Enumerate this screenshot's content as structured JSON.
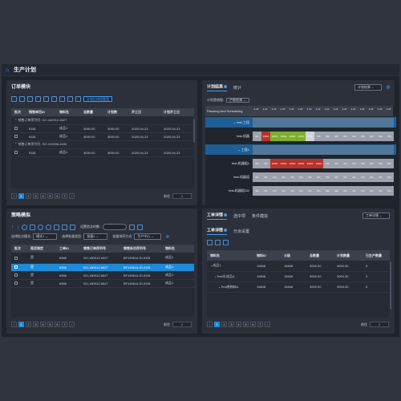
{
  "app": {
    "title": "生产计划"
  },
  "orders": {
    "title": "订单模块",
    "toolbar_tag": "计划后排班管理",
    "columns": [
      "批次",
      "销售单目ID",
      "物料名",
      "总数量",
      "计划数",
      "开工日",
      "计划开工日"
    ],
    "groups": [
      {
        "label": "销售订单序列号: SO-180912-8427",
        "rows": [
          [
            "",
            "9181",
            "成品1",
            "3000.00",
            "3000.00",
            "2020-04-23",
            "2020-04-23"
          ],
          [
            "",
            "9181",
            "成品1",
            "3000.00",
            "3000.00",
            "2020-04-23",
            "2020-04-23"
          ]
        ]
      },
      {
        "label": "销售订单序列号: SO-190506-8435",
        "rows": [
          [
            "",
            "9181",
            "成品1",
            "3000.00",
            "3000.00",
            "2020-04-23",
            "2020-04-23"
          ]
        ]
      }
    ],
    "pager": {
      "pages": [
        "1",
        "2",
        "3",
        "4",
        "5",
        "6",
        "7"
      ],
      "goto_label": "前往",
      "goto_value": "1"
    }
  },
  "strategy": {
    "title": "策略模拟",
    "setting_label": "设置首次时数:",
    "filter1_label": "选择批次模式:",
    "filter1_value": "模式1",
    "filter2_label": "选择批量类型:",
    "filter2_value": "批量1",
    "filter3_label": "批量排序方式:",
    "filter3_value": "生产中心",
    "columns": [
      "批次",
      "是否锁定",
      "工单ID",
      "销售订单序列号",
      "销售条目序列号",
      "物料名"
    ],
    "rows": [
      [
        "",
        "是",
        "8366",
        "SO-180912-8427",
        "BF190614-SI-9181",
        "成品1"
      ],
      [
        "",
        "是",
        "8366",
        "SO-180912-8427",
        "BF190614-SI-9181",
        "成品1"
      ],
      [
        "",
        "是",
        "8366",
        "SO-180912-8427",
        "BF190614-SI-9181",
        "成品1"
      ],
      [
        "",
        "是",
        "8366",
        "SO-180912-8427",
        "BF190614-SI-9181",
        "成品1"
      ]
    ],
    "selected_row": 1,
    "pager": {
      "pages": [
        "1",
        "2",
        "3",
        "4",
        "5",
        "6",
        "7"
      ],
      "goto_label": "前往",
      "goto_value": "1"
    }
  },
  "plan": {
    "tab1": "计划结果",
    "tab2": "统计",
    "result_select": "计划结果",
    "legend_label": "计划营销图:",
    "legend_value": "产能结果",
    "header_label": "Planning And Scheduling",
    "dates": [
      "4.22",
      "4.22",
      "4.22",
      "4.22",
      "4.22",
      "4.22",
      "4.22",
      "4.22",
      "4.22",
      "4.22",
      "4.22",
      "4.22",
      "4.22",
      "4.22",
      "4.22",
      "4.22"
    ],
    "rows": [
      {
        "name": "test-工段",
        "cells": [
          "",
          "",
          "",
          "",
          "",
          "",
          "",
          "",
          "",
          "",
          "",
          "",
          "",
          "",
          "",
          ""
        ]
      },
      {
        "name": "test-机器",
        "cells": [
          "0%",
          "100%",
          "100%",
          "100%",
          "100%",
          "100%",
          "17%",
          "0%",
          "0%",
          "0%",
          "0%",
          "0%",
          "0%",
          "0%",
          "0%",
          "0%"
        ]
      },
      {
        "name": "工段1",
        "cells": [
          "",
          "",
          "",
          "",
          "",
          "",
          "",
          "",
          "",
          "",
          "",
          "",
          "",
          "",
          "",
          ""
        ]
      },
      {
        "name": "test-机器组1",
        "cells": [
          "0%",
          "0%",
          "100%",
          "100%",
          "100%",
          "100%",
          "100%",
          "100%",
          "0%",
          "0%",
          "0%",
          "0%",
          "0%",
          "0%",
          "0%",
          "0%"
        ]
      },
      {
        "name": "test-机器组",
        "cells": [
          "0%",
          "0%",
          "0%",
          "0%",
          "0%",
          "0%",
          "0%",
          "0%",
          "0%",
          "0%",
          "0%",
          "0%",
          "0%",
          "0%",
          "0%",
          "0%"
        ]
      },
      {
        "name": "test-机器组111",
        "cells": [
          "0%",
          "0%",
          "0%",
          "0%",
          "0%",
          "0%",
          "0%",
          "0%",
          "0%",
          "0%",
          "0%",
          "0%",
          "0%",
          "0%",
          "0%",
          "0%"
        ]
      }
    ]
  },
  "workorder": {
    "tab1": "工单详情",
    "tab2": "选中项",
    "tab3": "条件模拟",
    "select_value": "工单详情",
    "subtab1": "工单详情",
    "subtab2": "分派设置",
    "columns": [
      "物料名",
      "物料ID",
      "父级",
      "总数量",
      "计划数量",
      "已生产数量"
    ],
    "rows": [
      [
        "成品1",
        "15848",
        "15848",
        "3000.00",
        "3000.00",
        "0"
      ],
      [
        "Test半成品A",
        "15848",
        "15848",
        "3000.00",
        "3000.00",
        "0"
      ],
      [
        "Test原物料A",
        "15848",
        "15848",
        "3000.00",
        "3000.00",
        "0"
      ]
    ],
    "pager": {
      "pages": [
        "1",
        "2",
        "3",
        "4",
        "5",
        "6",
        "7"
      ],
      "goto_label": "前往",
      "goto_value": "1"
    }
  }
}
